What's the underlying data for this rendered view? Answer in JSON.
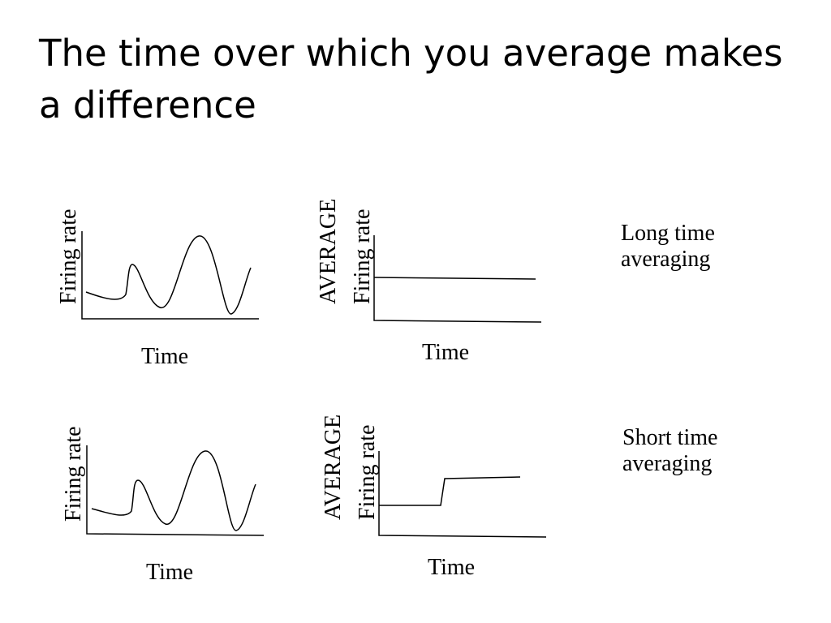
{
  "slide": {
    "title": "The time over which you average makes a difference"
  },
  "panels": {
    "raw_top": {
      "ylabel": "Firing rate",
      "xlabel": "Time"
    },
    "avg_top": {
      "ylabel_line1": "AVERAGE",
      "ylabel_line2": "Firing rate",
      "xlabel": "Time"
    },
    "raw_bottom": {
      "ylabel": "Firing rate",
      "xlabel": "Time"
    },
    "avg_bottom": {
      "ylabel_line1": "AVERAGE",
      "ylabel_line2": "Firing rate",
      "xlabel": "Time"
    }
  },
  "captions": {
    "long": {
      "line1": "Long time",
      "line2": "averaging"
    },
    "short": {
      "line1": "Short time",
      "line2": "averaging"
    }
  }
}
